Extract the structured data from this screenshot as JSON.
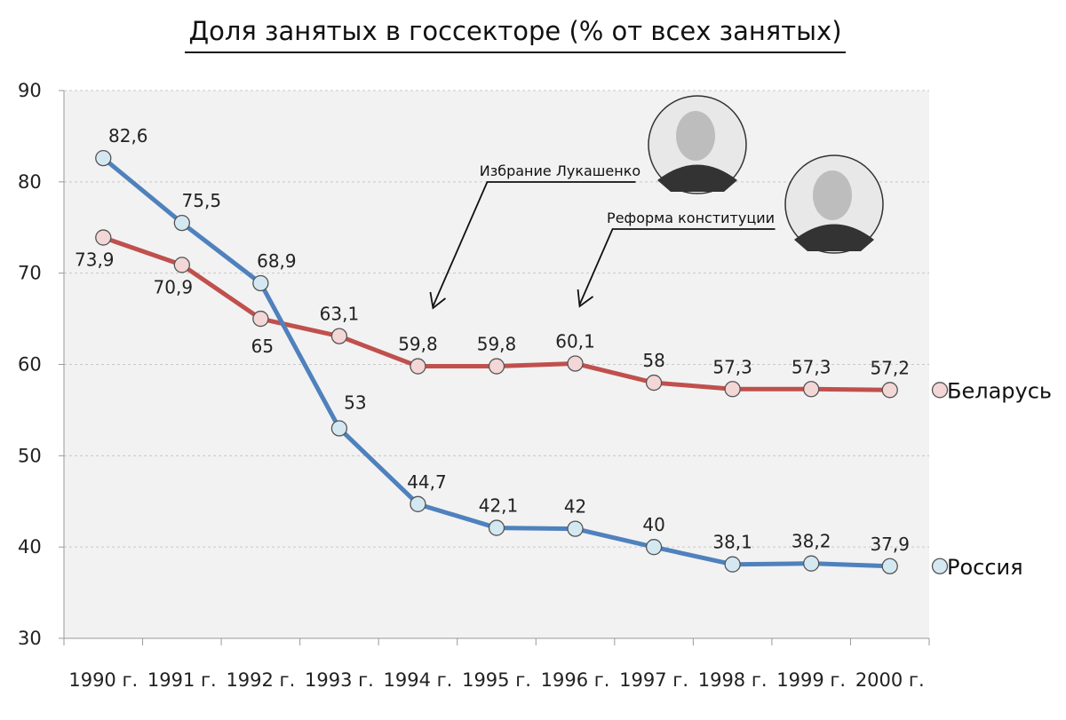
{
  "chart_data": {
    "type": "line",
    "title": "Доля занятых в госсекторе (% от всех занятых)",
    "categories": [
      "1990 г.",
      "1991 г.",
      "1992 г.",
      "1993 г.",
      "1994 г.",
      "1995 г.",
      "1996 г.",
      "1997 г.",
      "1998 г.",
      "1999 г.",
      "2000 г."
    ],
    "ylim": [
      30,
      90
    ],
    "yticks": [
      30,
      40,
      50,
      60,
      70,
      80,
      90
    ],
    "grid": true,
    "series": [
      {
        "name": "Беларусь",
        "values": [
          73.9,
          70.9,
          65,
          63.1,
          59.8,
          59.8,
          60.1,
          58,
          57.3,
          57.3,
          57.2
        ],
        "labels": [
          "73,9",
          "70,9",
          "65",
          "63,1",
          "59,8",
          "59,8",
          "60,1",
          "58",
          "57,3",
          "57,3",
          "57,2"
        ],
        "color": "#c0504d",
        "marker_fill": "#f2d7d6"
      },
      {
        "name": "Россия",
        "values": [
          82.6,
          75.5,
          68.9,
          53,
          44.7,
          42.1,
          42,
          40,
          38.1,
          38.2,
          37.9
        ],
        "labels": [
          "82,6",
          "75,5",
          "68,9",
          "53",
          "44,7",
          "42,1",
          "42",
          "40",
          "38,1",
          "38,2",
          "37,9"
        ],
        "color": "#4f81bd",
        "marker_fill": "#d4e8f2"
      }
    ],
    "annotations": [
      {
        "text": "Избрание Лукашенко",
        "category": "1994 г."
      },
      {
        "text": "Реформа конституции",
        "category": "1996 г."
      }
    ]
  }
}
